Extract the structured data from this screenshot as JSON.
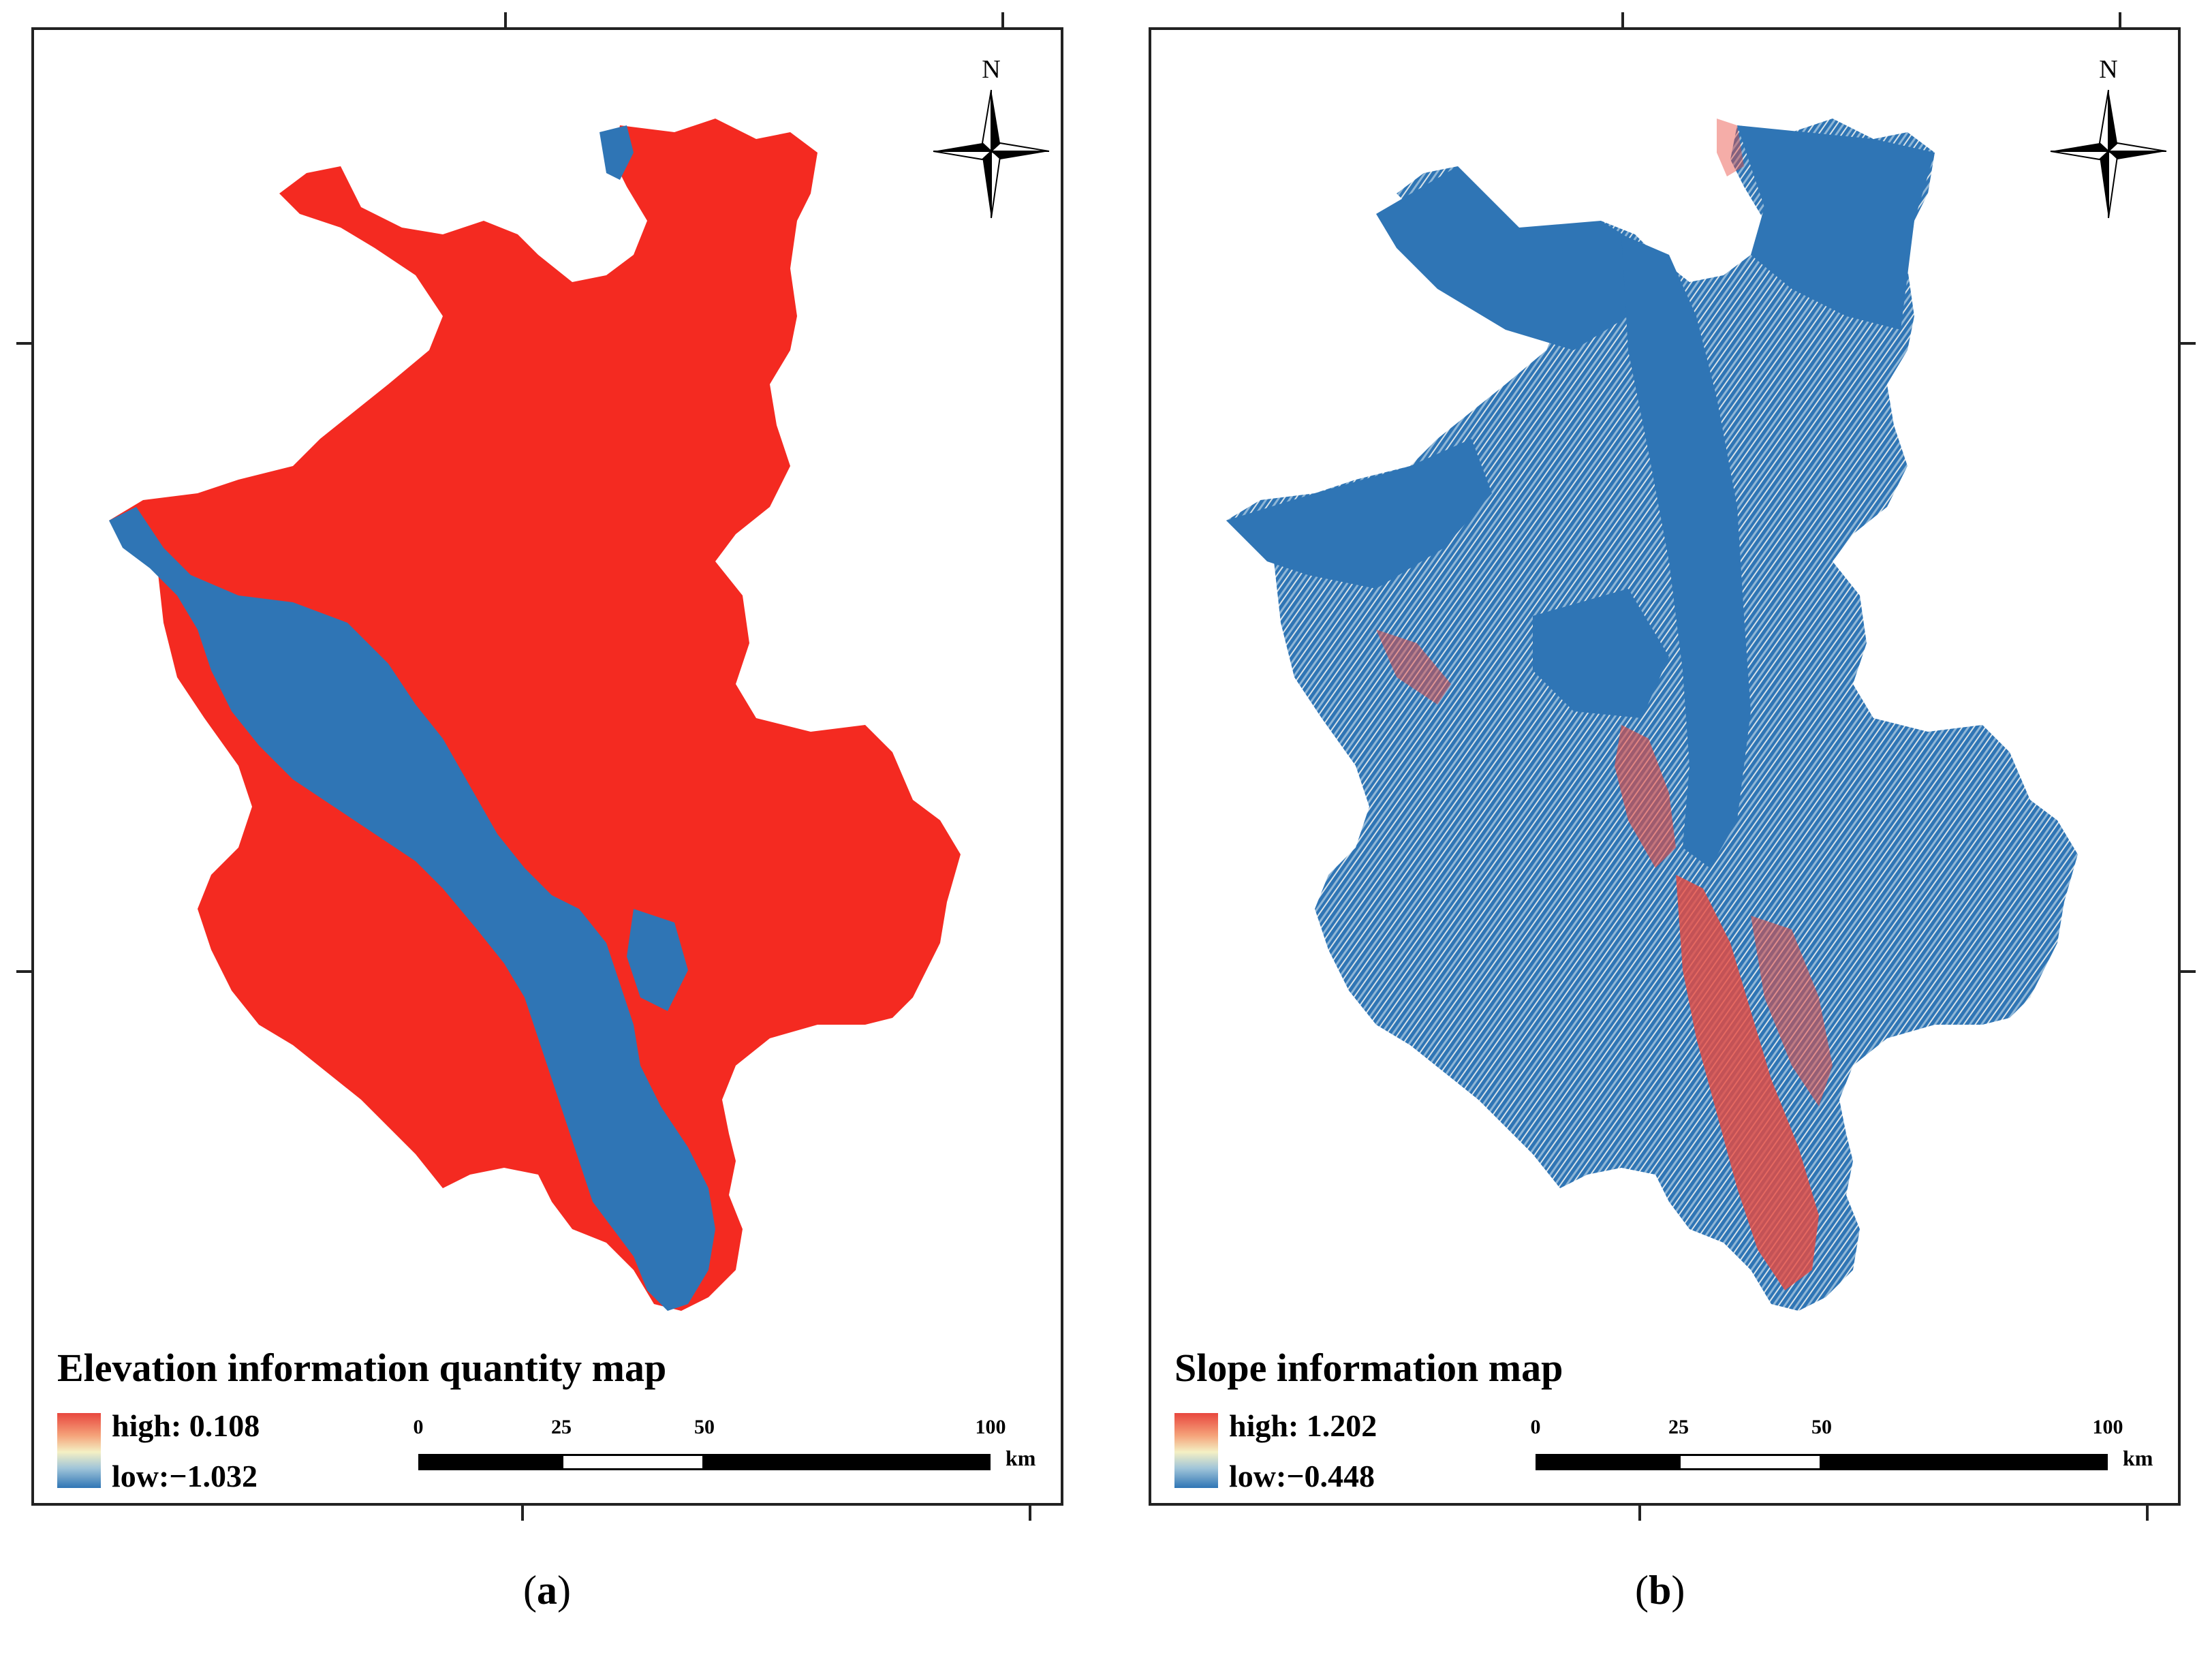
{
  "panels": [
    {
      "id": "a",
      "title": "Elevation information quantity map",
      "legend": {
        "high_label": "high: 0.108",
        "low_label": "low:−1.032",
        "ramp_colors": [
          "#e8473e",
          "#f5a37a",
          "#f4f0c4",
          "#9fc4d9",
          "#2f75b5"
        ]
      },
      "fill_high": "#f42a21",
      "fill_low": "#2f75b5",
      "compass": {
        "label": "N"
      },
      "scalebar": {
        "ticks": [
          "0",
          "25",
          "50",
          "100"
        ],
        "unit": "km"
      },
      "caption": {
        "open": "(",
        "letter": "a",
        "close": ")"
      }
    },
    {
      "id": "b",
      "title": "Slope information map",
      "legend": {
        "high_label": "high: 1.202",
        "low_label": "low:−0.448",
        "ramp_colors": [
          "#e8473e",
          "#f5a37a",
          "#f4f0c4",
          "#9fc4d9",
          "#2f75b5"
        ]
      },
      "fill_high": "#e94a3f",
      "fill_low": "#2f75b5",
      "compass": {
        "label": "N"
      },
      "scalebar": {
        "ticks": [
          "0",
          "25",
          "50",
          "100"
        ],
        "unit": "km"
      },
      "caption": {
        "open": "(",
        "letter": "b",
        "close": ")"
      }
    }
  ]
}
